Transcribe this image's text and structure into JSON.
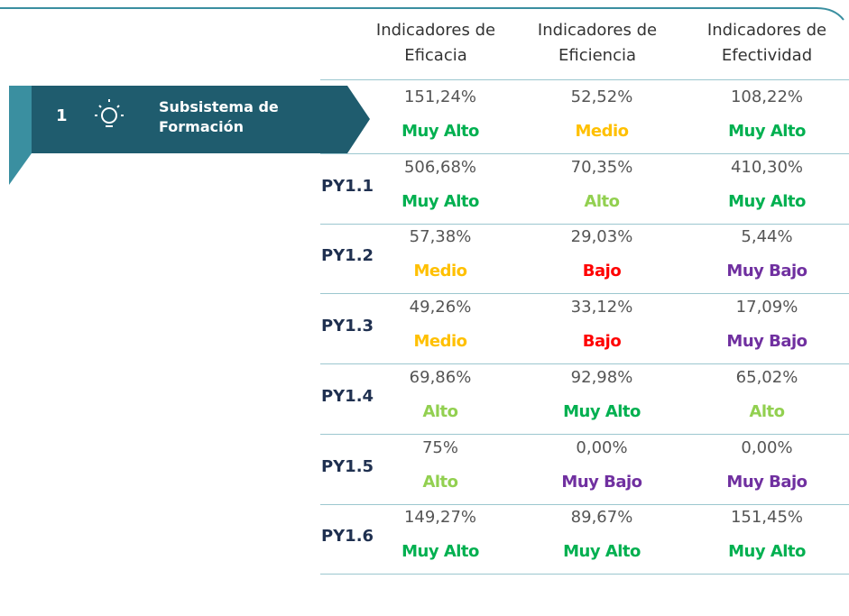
{
  "table": {
    "headers": [
      "Indicadores de Eficacia",
      "Indicadores de Eficiencia",
      "Indicadores de Efectividad"
    ],
    "banner": {
      "number": "1",
      "label": "Subsistema de Formación"
    },
    "level_colors": {
      "Muy Alto": "#00b050",
      "Alto": "#92d050",
      "Medio": "#ffc000",
      "Bajo": "#ff0000",
      "Muy Bajo": "#7030a0"
    },
    "rows": [
      {
        "cells": [
          {
            "value": "151,24%",
            "level": "Muy Alto"
          },
          {
            "value": "52,52%",
            "level": "Medio"
          },
          {
            "value": "108,22%",
            "level": "Muy Alto"
          }
        ]
      },
      {
        "label": "PY1.1",
        "cells": [
          {
            "value": "506,68%",
            "level": "Muy Alto"
          },
          {
            "value": "70,35%",
            "level": "Alto"
          },
          {
            "value": "410,30%",
            "level": "Muy Alto"
          }
        ]
      },
      {
        "label": "PY1.2",
        "cells": [
          {
            "value": "57,38%",
            "level": "Medio"
          },
          {
            "value": "29,03%",
            "level": "Bajo"
          },
          {
            "value": "5,44%",
            "level": "Muy Bajo"
          }
        ]
      },
      {
        "label": "PY1.3",
        "cells": [
          {
            "value": "49,26%",
            "level": "Medio"
          },
          {
            "value": "33,12%",
            "level": "Bajo"
          },
          {
            "value": "17,09%",
            "level": "Muy Bajo"
          }
        ]
      },
      {
        "label": "PY1.4",
        "cells": [
          {
            "value": "69,86%",
            "level": "Alto"
          },
          {
            "value": "92,98%",
            "level": "Muy Alto"
          },
          {
            "value": "65,02%",
            "level": "Alto"
          }
        ]
      },
      {
        "label": "PY1.5",
        "cells": [
          {
            "value": "75%",
            "level": "Alto"
          },
          {
            "value": "0,00%",
            "level": "Muy Bajo"
          },
          {
            "value": "0,00%",
            "level": "Muy Bajo"
          }
        ]
      },
      {
        "label": "PY1.6",
        "cells": [
          {
            "value": "149,27%",
            "level": "Muy Alto"
          },
          {
            "value": "89,67%",
            "level": "Muy Alto"
          },
          {
            "value": "151,45%",
            "level": "Muy Alto"
          }
        ]
      }
    ]
  }
}
